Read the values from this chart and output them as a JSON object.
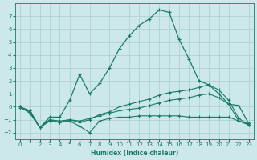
{
  "xlabel": "Humidex (Indice chaleur)",
  "background_color": "#cce8ea",
  "grid_color": "#aacccc",
  "line_color": "#1a7a6a",
  "xlim": [
    -0.5,
    23.5
  ],
  "ylim": [
    -2.5,
    8.0
  ],
  "yticks": [
    -2,
    -1,
    0,
    1,
    2,
    3,
    4,
    5,
    6,
    7
  ],
  "xticks": [
    0,
    1,
    2,
    3,
    4,
    5,
    6,
    7,
    8,
    9,
    10,
    11,
    12,
    13,
    14,
    15,
    16,
    17,
    18,
    19,
    20,
    21,
    22,
    23
  ],
  "series1_x": [
    0,
    1,
    2,
    3,
    4,
    5,
    6,
    7,
    8,
    9,
    10,
    11,
    12,
    13,
    14,
    15,
    16,
    17,
    18,
    19,
    20,
    21,
    22,
    23
  ],
  "series1_y": [
    0.0,
    -0.5,
    -1.6,
    -0.8,
    -0.8,
    0.5,
    2.5,
    1.0,
    1.8,
    3.0,
    4.5,
    5.5,
    6.3,
    6.8,
    7.5,
    7.3,
    5.2,
    3.7,
    2.0,
    1.7,
    1.0,
    0.2,
    0.1,
    -1.3
  ],
  "series2_x": [
    0,
    1,
    2,
    3,
    4,
    5,
    6,
    7,
    8,
    9,
    10,
    11,
    12,
    13,
    14,
    15,
    16,
    17,
    18,
    19,
    20,
    21,
    22,
    23
  ],
  "series2_y": [
    0.0,
    -0.4,
    -1.6,
    -1.1,
    -1.2,
    -1.1,
    -1.5,
    -2.0,
    -1.1,
    -0.9,
    -0.8,
    -0.8,
    -0.7,
    -0.7,
    -0.7,
    -0.7,
    -0.7,
    -0.8,
    -0.8,
    -0.8,
    -0.8,
    -0.8,
    -1.1,
    -1.3
  ],
  "series3_x": [
    0,
    1,
    2,
    3,
    4,
    5,
    6,
    7,
    8,
    9,
    10,
    11,
    12,
    13,
    14,
    15,
    16,
    17,
    18,
    19,
    20,
    21,
    22,
    23
  ],
  "series3_y": [
    -0.1,
    -0.3,
    -1.6,
    -1.0,
    -1.1,
    -1.0,
    -1.1,
    -0.9,
    -0.7,
    -0.5,
    -0.3,
    -0.2,
    -0.1,
    0.1,
    0.3,
    0.5,
    0.6,
    0.7,
    0.9,
    1.0,
    0.7,
    0.2,
    -1.1,
    -1.4
  ],
  "series4_x": [
    0,
    1,
    2,
    3,
    4,
    5,
    6,
    7,
    8,
    9,
    10,
    11,
    12,
    13,
    14,
    15,
    16,
    17,
    18,
    19,
    20,
    21,
    22,
    23
  ],
  "series4_y": [
    0.0,
    -0.3,
    -1.6,
    -1.0,
    -1.2,
    -1.0,
    -1.2,
    -1.0,
    -0.6,
    -0.4,
    0.0,
    0.2,
    0.4,
    0.6,
    0.9,
    1.1,
    1.2,
    1.3,
    1.5,
    1.7,
    1.3,
    0.5,
    -0.9,
    -1.4
  ]
}
